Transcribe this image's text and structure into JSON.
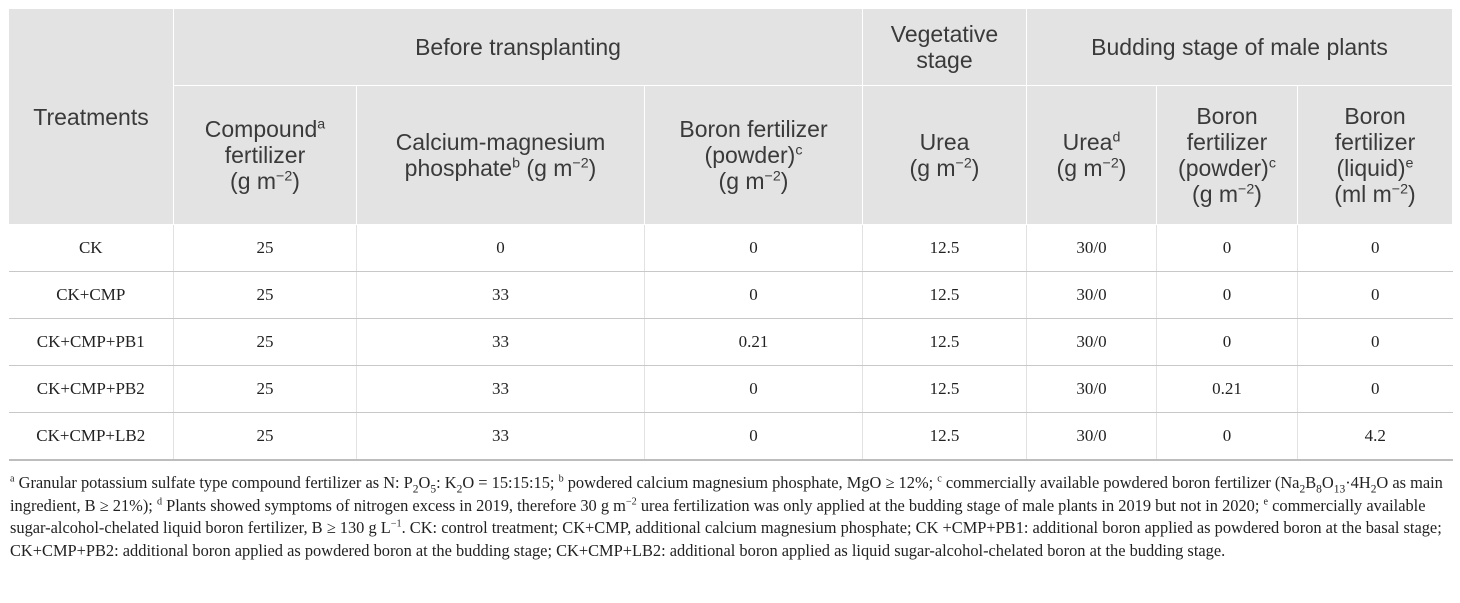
{
  "header": {
    "treatments": "Treatments",
    "group_before": "Before transplanting",
    "group_vegetative_1": "Vegetative",
    "group_vegetative_2": "stage",
    "group_budding": "Budding stage of male plants",
    "compound_1": "Compound",
    "compound_sup": "a",
    "compound_2": "fertilizer",
    "compound_unit_a": "(g m",
    "compound_unit_exp": "−2",
    "compound_unit_b": ")",
    "cmp_1": "Calcium-magnesium",
    "cmp_2": "phosphate",
    "cmp_sup": "b",
    "cmp_unit_a": " (g m",
    "cmp_unit_exp": "−2",
    "cmp_unit_b": ")",
    "boron_pow_1": "Boron fertilizer",
    "boron_pow_2": "(powder)",
    "boron_pow_sup": "c",
    "boron_pow_unit_a": "(g m",
    "boron_pow_unit_exp": "−2",
    "boron_pow_unit_b": ")",
    "urea_veg_1": "Urea",
    "urea_veg_unit_a": "(g m",
    "urea_veg_unit_exp": "−2",
    "urea_veg_unit_b": ")",
    "urea_bud_1": "Urea",
    "urea_bud_sup": "d",
    "urea_bud_unit_a": "(g m",
    "urea_bud_unit_exp": "−2",
    "urea_bud_unit_b": ")",
    "boron_bud_pow_1": "Boron",
    "boron_bud_pow_2": "fertilizer",
    "boron_bud_pow_3": "(powder)",
    "boron_bud_pow_sup": "c",
    "boron_bud_pow_unit_a": "(g m",
    "boron_bud_pow_unit_exp": "−2",
    "boron_bud_pow_unit_b": ")",
    "boron_liq_1": "Boron",
    "boron_liq_2": "fertilizer",
    "boron_liq_3": "(liquid)",
    "boron_liq_sup": "e",
    "boron_liq_unit_a": "(ml m",
    "boron_liq_unit_exp": "−2",
    "boron_liq_unit_b": ")"
  },
  "rows": [
    [
      "CK",
      "25",
      "0",
      "0",
      "12.5",
      "30/0",
      "0",
      "0"
    ],
    [
      "CK+CMP",
      "25",
      "33",
      "0",
      "12.5",
      "30/0",
      "0",
      "0"
    ],
    [
      "CK+CMP+PB1",
      "25",
      "33",
      "0.21",
      "12.5",
      "30/0",
      "0",
      "0"
    ],
    [
      "CK+CMP+PB2",
      "25",
      "33",
      "0",
      "12.5",
      "30/0",
      "0.21",
      "0"
    ],
    [
      "CK+CMP+LB2",
      "25",
      "33",
      "0",
      "12.5",
      "30/0",
      "0",
      "4.2"
    ]
  ],
  "footnote": {
    "a_mark": "a",
    "a_text_1": " Granular potassium sulfate type compound fertilizer as N: P",
    "a_sub_1": "2",
    "a_text_2": "O",
    "a_sub_2": "5",
    "a_text_3": ": K",
    "a_sub_3": "2",
    "a_text_4": "O = 15:15:15; ",
    "b_mark": "b",
    "b_text": " powdered calcium magnesium phosphate, MgO ≥ 12%; ",
    "c_mark": "c",
    "c_text_1": " commercially available powdered boron fertilizer (Na",
    "c_sub_1": "2",
    "c_text_2": "B",
    "c_sub_2": "8",
    "c_text_3": "O",
    "c_sub_3": "13",
    "c_text_4": "·4H",
    "c_sub_4": "2",
    "c_text_5": "O as main ingredient, B ≥ 21%); ",
    "d_mark": "d",
    "d_text_1": " Plants showed symptoms of nitrogen excess in 2019, therefore 30 g m",
    "d_exp": "−2",
    "d_text_2": " urea fertilization was only applied at the budding stage of male plants in 2019 but not in 2020; ",
    "e_mark": "e",
    "e_text_1": " commercially available sugar-alcohol-chelated liquid boron fertilizer, B ≥ 130 g L",
    "e_exp": "−1",
    "e_text_2": ". CK: control treatment; CK+CMP, additional calcium magnesium phosphate; CK +CMP+PB1: additional boron applied as powdered boron at the basal stage; CK+CMP+PB2: additional boron applied as powdered boron at the budding stage; CK+CMP+LB2: additional boron applied as liquid sugar-alcohol-chelated boron at the budding stage."
  }
}
